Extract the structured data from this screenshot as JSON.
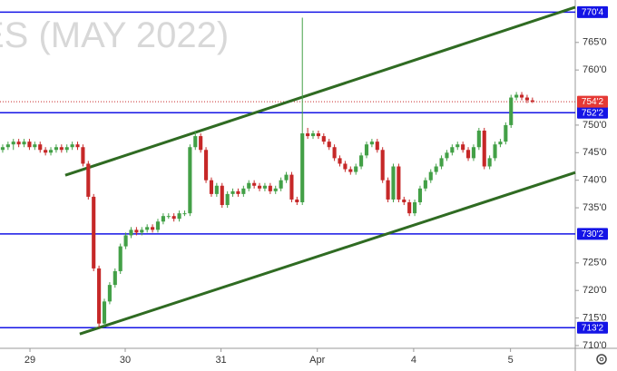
{
  "chart_data": {
    "type": "candlestick",
    "watermark": "ES (MAY 2022)",
    "x": [
      0,
      1,
      2,
      3,
      4,
      5,
      6,
      7,
      8,
      9,
      10,
      11,
      12,
      13,
      14,
      15,
      16,
      17,
      18,
      19,
      20,
      21,
      22,
      23,
      24,
      25,
      26,
      27,
      28,
      29,
      30,
      31,
      32,
      33,
      34,
      35,
      36,
      37,
      38,
      39,
      40,
      41,
      42,
      43,
      44,
      45,
      46,
      47,
      48,
      49,
      50,
      51,
      52,
      53,
      54,
      55,
      56,
      57,
      58,
      59,
      60,
      61,
      62,
      63,
      64,
      65,
      66,
      67,
      68,
      69,
      70,
      71,
      72,
      73,
      74,
      75,
      76,
      77,
      78,
      79,
      80,
      81,
      82,
      83,
      84,
      85,
      86,
      87,
      88,
      89,
      90,
      91,
      92,
      93,
      94,
      95,
      96,
      97,
      98,
      99
    ],
    "open": [
      745.5,
      746,
      746.5,
      747,
      746.5,
      747,
      746,
      746.5,
      745.5,
      745,
      745.5,
      746,
      745.5,
      746,
      746.5,
      746,
      743,
      737,
      724,
      714,
      718,
      721,
      723.5,
      728,
      730,
      731,
      730.5,
      731,
      731.5,
      731,
      732.5,
      733.5,
      733.5,
      733,
      734,
      734,
      746,
      748,
      745.5,
      740,
      737.5,
      739,
      735.5,
      737.5,
      738,
      737.5,
      738.5,
      739.5,
      739,
      738.5,
      739,
      738,
      738.5,
      740,
      741,
      736.5,
      736,
      748.5,
      748,
      748.5,
      748,
      747,
      746,
      744,
      743,
      742,
      741.5,
      742.5,
      744.5,
      746.5,
      747,
      745.5,
      740,
      736.5,
      742.5,
      736.5,
      736,
      734,
      736,
      738.5,
      740,
      741.5,
      742.5,
      744,
      745,
      746,
      746.5,
      745.5,
      744,
      746,
      749,
      742.5,
      744,
      746.5,
      747,
      750,
      755,
      755.5,
      755,
      754.5
    ],
    "high": [
      746.5,
      747,
      747.5,
      747.5,
      747.5,
      747.5,
      747,
      747,
      746,
      746,
      746.5,
      746.5,
      746.5,
      747,
      747,
      746.5,
      743.5,
      737.5,
      724.5,
      718.5,
      721.5,
      724,
      728.5,
      730.5,
      731.5,
      731.5,
      731.5,
      732,
      732,
      733,
      734,
      734,
      734,
      734.5,
      734.5,
      746.5,
      749,
      748.5,
      746,
      740.5,
      739.5,
      739.5,
      738,
      738.5,
      738.5,
      739,
      740,
      740,
      739.5,
      739.5,
      739.5,
      739,
      740.5,
      741.5,
      741.5,
      737,
      769.5,
      749.5,
      749,
      749,
      748.5,
      747.5,
      746.5,
      744.5,
      743.5,
      742.5,
      743,
      745,
      747,
      747.5,
      747.5,
      746,
      740.5,
      743,
      743,
      737,
      736.5,
      736.5,
      739,
      740.5,
      742,
      743,
      744.5,
      745.5,
      746.5,
      747,
      747,
      746,
      746.5,
      749.5,
      749.5,
      744.5,
      747,
      747.5,
      750.5,
      755.5,
      756,
      756,
      755.5,
      755
    ],
    "low": [
      745,
      745.5,
      745.5,
      746,
      746,
      745.5,
      745.5,
      745,
      744.5,
      744.5,
      745,
      745,
      745,
      745.5,
      745.5,
      742.5,
      736.5,
      723.5,
      713.25,
      713.5,
      717.5,
      720.5,
      723,
      727.5,
      729.5,
      730,
      730,
      730.5,
      730.5,
      730.5,
      732,
      733,
      732.5,
      732.5,
      733.5,
      733.5,
      745.5,
      745,
      739.5,
      737,
      737,
      735,
      735,
      737,
      737,
      737,
      738,
      738.5,
      738,
      738,
      737.5,
      737.5,
      738,
      739.5,
      736,
      735.5,
      735.5,
      747.5,
      747.5,
      747.5,
      746.5,
      745.5,
      743.5,
      742.5,
      741.5,
      741,
      741,
      742,
      744,
      746,
      745,
      739.5,
      736,
      736,
      736,
      735.5,
      733.5,
      733.5,
      735.5,
      738,
      739.5,
      741,
      742,
      743.5,
      744.5,
      745.5,
      745,
      743.5,
      743.5,
      745.5,
      742,
      742,
      743.5,
      746,
      746.5,
      749.5,
      754.5,
      754.5,
      754,
      754
    ],
    "close": [
      746,
      746.5,
      747,
      746.5,
      747,
      746,
      746.5,
      745.5,
      745,
      745.5,
      746,
      745.5,
      746,
      746.5,
      746,
      743,
      737,
      724,
      714,
      718,
      721,
      723.5,
      728,
      730,
      731,
      730.5,
      731,
      731.5,
      731,
      732.5,
      733.5,
      733.5,
      733,
      734,
      734,
      746,
      748,
      745.5,
      740,
      737.5,
      739,
      735.5,
      737.5,
      738,
      737.5,
      738.5,
      739.5,
      739,
      738.5,
      739,
      738,
      738.5,
      740,
      741,
      736.5,
      736,
      748.5,
      748,
      748.5,
      748,
      747,
      746,
      744,
      743,
      742,
      741.5,
      742.5,
      744.5,
      746.5,
      747,
      745.5,
      740,
      736.5,
      742.5,
      736.5,
      736,
      734,
      736,
      738.5,
      740,
      741.5,
      742.5,
      744,
      745,
      746,
      746.5,
      745.5,
      744,
      746,
      749,
      742.5,
      744,
      746.5,
      747,
      750,
      755,
      755.5,
      755,
      754.5,
      754.25
    ],
    "up_color": "#43a047",
    "down_color": "#c62828",
    "xlim": [
      -0.5,
      107
    ],
    "xticks": [
      {
        "value": 5.1,
        "label": "29"
      },
      {
        "value": 22.9,
        "label": "30"
      },
      {
        "value": 40.8,
        "label": "31"
      },
      {
        "value": 58.8,
        "label": "Apr"
      },
      {
        "value": 76.8,
        "label": "4"
      },
      {
        "value": 94.9,
        "label": "5"
      }
    ],
    "ylim": [
      709.5,
      772.7
    ],
    "yticks": [
      {
        "value": 710,
        "label": "710'0"
      },
      {
        "value": 715,
        "label": "715'0"
      },
      {
        "value": 720,
        "label": "720'0"
      },
      {
        "value": 725,
        "label": "725'0"
      },
      {
        "value": 735,
        "label": "735'0"
      },
      {
        "value": 740,
        "label": "740'0"
      },
      {
        "value": 745,
        "label": "745'0"
      },
      {
        "value": 750,
        "label": "750'0"
      },
      {
        "value": 760,
        "label": "760'0"
      },
      {
        "value": 765,
        "label": "765'0"
      }
    ],
    "levels": [
      {
        "value": 770.5,
        "label": "770'4"
      },
      {
        "value": 752.25,
        "label": "752'2"
      },
      {
        "value": 730.25,
        "label": "730'2"
      },
      {
        "value": 713.25,
        "label": "713'2"
      }
    ],
    "level_color": "#1414e6",
    "last_price": {
      "value": 754.25,
      "label": "754'2"
    },
    "trendlines": [
      {
        "x": [
          11.7,
          107
        ],
        "y": [
          740.9,
          771.4
        ]
      },
      {
        "x": [
          14.4,
          107
        ],
        "y": [
          712.1,
          741.4
        ]
      }
    ],
    "trend_color": "#2f6b22"
  }
}
